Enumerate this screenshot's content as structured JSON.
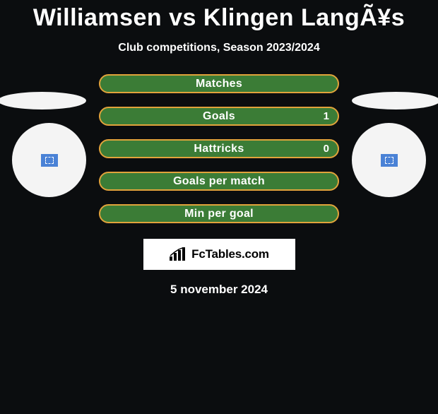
{
  "header": {
    "title": "Williamsen vs Klingen LangÃ¥s",
    "subtitle": "Club competitions, Season 2023/2024"
  },
  "colors": {
    "background": "#0b0d0f",
    "bar_primary": "#3b7c36",
    "bar_border": "#e1a33b",
    "text": "#ffffff",
    "ellipse": "#f4f4f4",
    "badge_blue": "#4a82d6",
    "fct_bg": "#ffffff",
    "fct_text": "#000000"
  },
  "bars": [
    {
      "label": "Matches",
      "value": "",
      "show_value": false
    },
    {
      "label": "Goals",
      "value": "1",
      "show_value": true
    },
    {
      "label": "Hattricks",
      "value": "0",
      "show_value": true
    },
    {
      "label": "Goals per match",
      "value": "",
      "show_value": false
    },
    {
      "label": "Min per goal",
      "value": "",
      "show_value": false
    }
  ],
  "bar_style": {
    "height": 27,
    "border_radius": 14,
    "border_width": 2,
    "label_fontsize": 16,
    "value_fontsize": 15,
    "gap": 19,
    "container_width": 340
  },
  "fct": {
    "text": "FcTables.com"
  },
  "date": "5 november 2024"
}
